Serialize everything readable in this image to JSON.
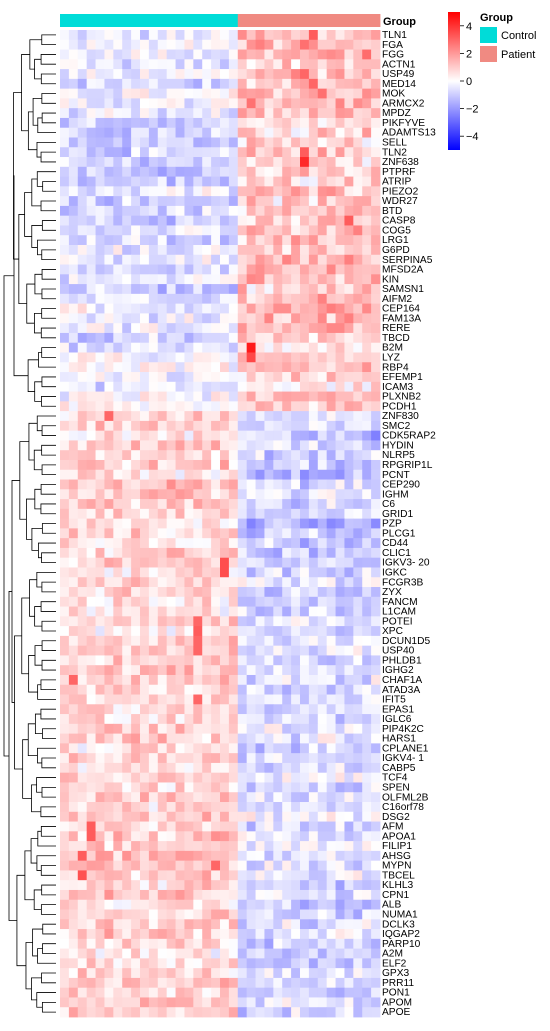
{
  "chart_data": {
    "type": "heatmap",
    "title": "",
    "groups": {
      "title": "Group",
      "levels": [
        "Control",
        "Patient"
      ],
      "colors": {
        "Control": "#00dcd8",
        "Patient": "#f08a82"
      },
      "columns": [
        "Control",
        "Control",
        "Control",
        "Control",
        "Control",
        "Control",
        "Control",
        "Control",
        "Control",
        "Control",
        "Control",
        "Control",
        "Control",
        "Control",
        "Control",
        "Control",
        "Control",
        "Control",
        "Control",
        "Control",
        "Patient",
        "Patient",
        "Patient",
        "Patient",
        "Patient",
        "Patient",
        "Patient",
        "Patient",
        "Patient",
        "Patient",
        "Patient",
        "Patient",
        "Patient",
        "Patient",
        "Patient",
        "Patient"
      ]
    },
    "color_scale": {
      "min": -5,
      "max": 5,
      "low_color": "#0000ff",
      "mid_color": "#ffffff",
      "high_color": "#ff0000",
      "legend_ticks": [
        4,
        2,
        0,
        -2,
        -4
      ]
    },
    "genes": [
      "TLN1",
      "FGA",
      "FGG",
      "ACTN1",
      "USP49",
      "MED14",
      "MOK",
      "ARMCX2",
      "MPDZ",
      "PIKFYVE",
      "ADAMTS13",
      "SELL",
      "TLN2",
      "ZNF638",
      "PTPRF",
      "ATRIP",
      "PIEZO2",
      "WDR27",
      "BTD",
      "CASP8",
      "COG5",
      "LRG1",
      "G6PD",
      "SERPINA5",
      "MFSD2A",
      "KIN",
      "SAMSN1",
      "AIFM2",
      "CEP164",
      "FAM13A",
      "RERE",
      "TBCD",
      "B2M",
      "LYZ",
      "RBP4",
      "EFEMP1",
      "ICAM3",
      "PLXNB2",
      "PCDH1",
      "ZNF830",
      "SMC2",
      "CDK5RAP2",
      "HYDIN",
      "NLRP5",
      "RPGRIP1L",
      "PCNT",
      "CEP290",
      "IGHM",
      "C6",
      "GRID1",
      "PZP",
      "PLCG1",
      "CD44",
      "CLIC1",
      "IGKV3- 20",
      "IGKC",
      "FCGR3B",
      "ZYX",
      "FANCM",
      "L1CAM",
      "POTEI",
      "XPC",
      "DCUN1D5",
      "USP40",
      "PHLDB1",
      "IGHG2",
      "CHAF1A",
      "ATAD3A",
      "IFIT5",
      "EPAS1",
      "IGLC6",
      "PIP4K2C",
      "HARS1",
      "CPLANE1",
      "IGKV4- 1",
      "CABP5",
      "TCF4",
      "SPEN",
      "OLFML2B",
      "C16orf78",
      "DSG2",
      "AFM",
      "APOA1",
      "FILIP1",
      "AHSG",
      "MYPN",
      "TBCEL",
      "KLHL3",
      "CPN1",
      "ALB",
      "NUMA1",
      "DCLK3",
      "IQGAP2",
      "PARP10",
      "A2M",
      "ELF2",
      "GPX3",
      "PRR11",
      "PON1",
      "APOM",
      "APOE"
    ],
    "cluster_blocks": [
      {
        "rows": [
          0,
          31
        ],
        "control_mean": -0.6,
        "patient_mean": 1.2
      },
      {
        "rows": [
          32,
          38
        ],
        "control_mean": -0.3,
        "patient_mean": 0.8
      },
      {
        "rows": [
          39,
          54
        ],
        "control_mean": 0.8,
        "patient_mean": -1.0
      },
      {
        "rows": [
          55,
          80
        ],
        "control_mean": 0.7,
        "patient_mean": -0.7
      },
      {
        "rows": [
          81,
          100
        ],
        "control_mean": 0.9,
        "patient_mean": -0.8
      }
    ],
    "highlight_cells": [
      {
        "gene": "TLN1",
        "column": 28,
        "value": 3.2
      },
      {
        "gene": "FGA",
        "column": 27,
        "value": 2.8
      },
      {
        "gene": "USP49",
        "column": 27,
        "value": 3.0
      },
      {
        "gene": "MED14",
        "column": 28,
        "value": 3.0
      },
      {
        "gene": "MOK",
        "column": 29,
        "value": 2.8
      },
      {
        "gene": "ZNF638",
        "column": 27,
        "value": 4.2
      },
      {
        "gene": "TLN2",
        "column": 27,
        "value": 3.2
      },
      {
        "gene": "COG5",
        "column": 33,
        "value": 2.5
      },
      {
        "gene": "CASP8",
        "column": 32,
        "value": 3.2
      },
      {
        "gene": "B2M",
        "column": 21,
        "value": 4.5
      },
      {
        "gene": "LYZ",
        "column": 21,
        "value": 3.6
      },
      {
        "gene": "ZNF830",
        "column": 5,
        "value": 3.0
      },
      {
        "gene": "IGKV3- 20",
        "column": 18,
        "value": 3.5
      },
      {
        "gene": "IGKC",
        "column": 18,
        "value": 3.5
      },
      {
        "gene": "POTEI",
        "column": 15,
        "value": 3.0
      },
      {
        "gene": "XPC",
        "column": 15,
        "value": 3.2
      },
      {
        "gene": "DCUN1D5",
        "column": 15,
        "value": 3.0
      },
      {
        "gene": "USP40",
        "column": 15,
        "value": 3.0
      },
      {
        "gene": "CHAF1A",
        "column": 1,
        "value": 3.0
      },
      {
        "gene": "IFIT5",
        "column": 15,
        "value": 3.0
      },
      {
        "gene": "AFM",
        "column": 3,
        "value": 3.2
      },
      {
        "gene": "APOA1",
        "column": 3,
        "value": 3.2
      },
      {
        "gene": "AHSG",
        "column": 2,
        "value": 3.2
      },
      {
        "gene": "TBCEL",
        "column": 2,
        "value": 3.4
      },
      {
        "gene": "MYPN",
        "column": 17,
        "value": 3.0
      }
    ]
  }
}
